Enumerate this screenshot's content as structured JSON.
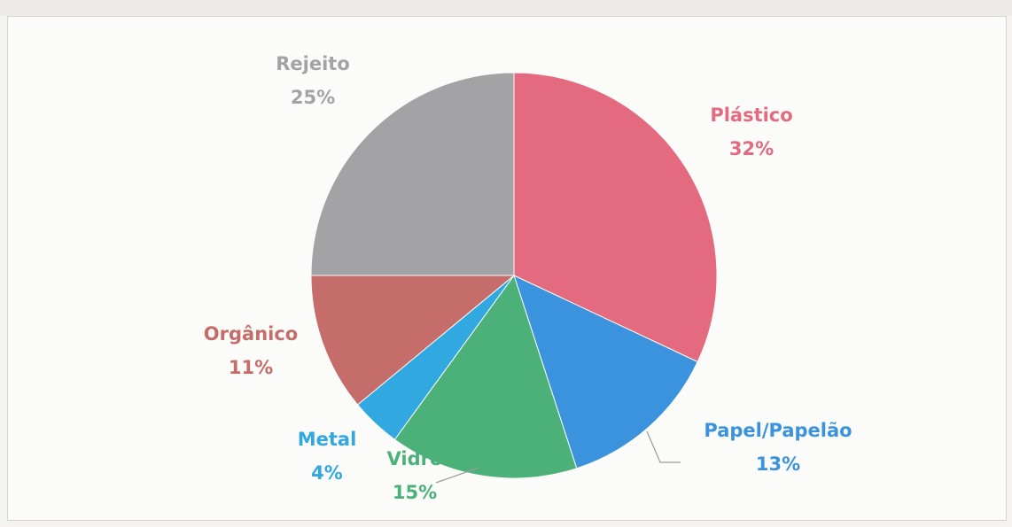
{
  "chart_data": {
    "type": "pie",
    "title": "",
    "start_angle_deg": 0,
    "slices": [
      {
        "name": "Plástico",
        "value": 32,
        "label": "32%",
        "color": "#e36a7f"
      },
      {
        "name": "Papel/Papelão",
        "value": 13,
        "label": "13%",
        "color": "#3a93dc"
      },
      {
        "name": "Vidro",
        "value": 15,
        "label": "15%",
        "color": "#4bb179"
      },
      {
        "name": "Metal",
        "value": 4,
        "label": "4%",
        "color": "#31a8df"
      },
      {
        "name": "Orgânico",
        "value": 11,
        "label": "11%",
        "color": "#c56d6a"
      },
      {
        "name": "Rejeito",
        "value": 25,
        "label": "25%",
        "color": "#a3a3a5"
      }
    ]
  }
}
